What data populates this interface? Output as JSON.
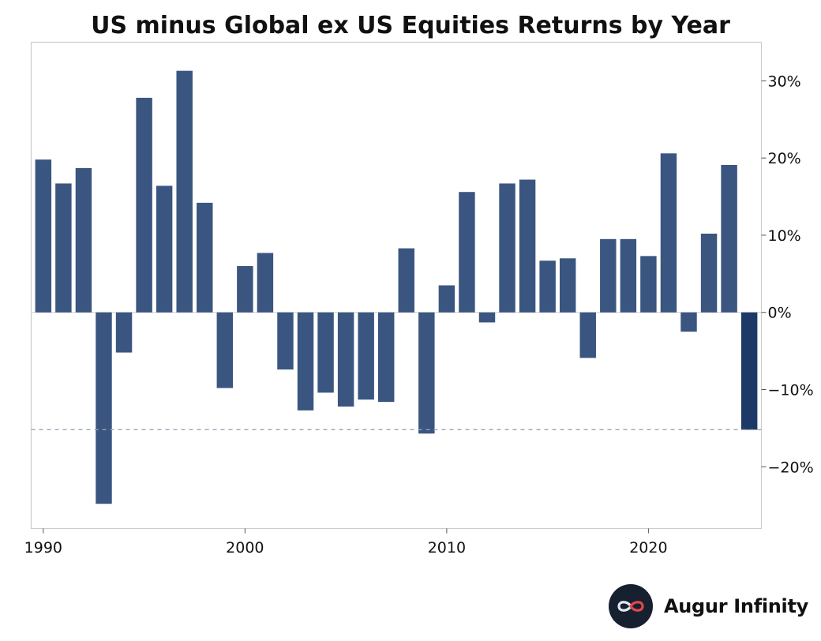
{
  "chart_data": {
    "type": "bar",
    "title": "US minus Global ex US Equities Returns by Year",
    "xlabel": "",
    "ylabel": "",
    "y_axis_position": "right",
    "x_ticks": [
      1990,
      2000,
      2010,
      2020
    ],
    "y_ticks": [
      {
        "value": 30,
        "label": "30%"
      },
      {
        "value": 20,
        "label": "20%"
      },
      {
        "value": 10,
        "label": "10%"
      },
      {
        "value": 0,
        "label": "0%"
      },
      {
        "value": -10,
        "label": "−10%"
      },
      {
        "value": -20,
        "label": "−20%"
      }
    ],
    "xlim": [
      1989.4,
      2025.6
    ],
    "ylim": [
      -28,
      35
    ],
    "grid": false,
    "reference_line": {
      "value": -15.2,
      "style": "dashed"
    },
    "bar_color": "#3a5580",
    "highlight_color": "#1d3a66",
    "highlight_year": 2025,
    "series": [
      {
        "name": "US minus Global ex US",
        "years": [
          1990,
          1991,
          1992,
          1993,
          1994,
          1995,
          1996,
          1997,
          1998,
          1999,
          2000,
          2001,
          2002,
          2003,
          2004,
          2005,
          2006,
          2007,
          2008,
          2009,
          2010,
          2011,
          2012,
          2013,
          2014,
          2015,
          2016,
          2017,
          2018,
          2019,
          2020,
          2021,
          2022,
          2023,
          2024,
          2025
        ],
        "values": [
          19.8,
          16.7,
          18.7,
          -24.8,
          -5.2,
          27.8,
          16.4,
          31.3,
          14.2,
          -9.8,
          6.0,
          7.7,
          -7.4,
          -12.7,
          -10.4,
          -12.2,
          -11.3,
          -11.6,
          8.3,
          -15.7,
          3.5,
          15.6,
          -1.3,
          16.7,
          17.2,
          6.7,
          7.0,
          -5.9,
          9.5,
          9.5,
          7.3,
          20.6,
          -2.5,
          10.2,
          19.1,
          -15.2
        ]
      }
    ]
  },
  "brand": {
    "name": "Augur Infinity",
    "logo_icon": "infinity-icon",
    "logo_bg": "#17202f"
  }
}
